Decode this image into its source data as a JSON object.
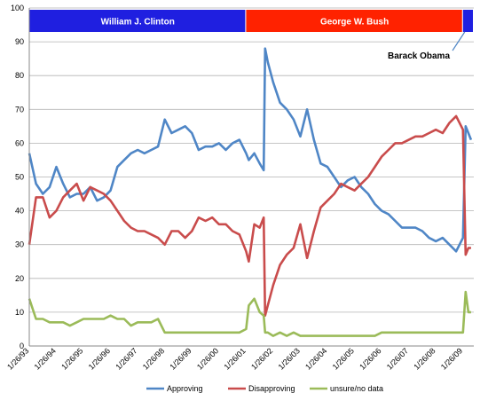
{
  "chart_data": {
    "type": "line",
    "title": "",
    "xlabel": "",
    "ylabel": "",
    "ylim": [
      0,
      100
    ],
    "yticks": [
      0,
      10,
      20,
      30,
      40,
      50,
      60,
      70,
      80,
      90,
      100
    ],
    "xlim": [
      1993,
      2009.4
    ],
    "x_tick_labels": [
      "1/26/93",
      "1/26/94",
      "1/26/95",
      "1/26/96",
      "1/26/97",
      "1/26/98",
      "1/26/99",
      "1/26/00",
      "1/26/01",
      "1/26/02",
      "1/26/03",
      "1/26/04",
      "1/26/05",
      "1/26/06",
      "1/26/07",
      "1/26/08",
      "1/26/09"
    ],
    "grid": "horizontal",
    "legend_position": "bottom",
    "presidency_bands": [
      {
        "name": "William J. Clinton",
        "start": 1993,
        "end": 2001,
        "color": "#1f1fe0"
      },
      {
        "name": "George W. Bush",
        "start": 2001,
        "end": 2009,
        "color": "#ff2200"
      },
      {
        "name": "Barack Obama",
        "start": 2009,
        "end": 2009.4,
        "color": "#1f1fe0"
      }
    ],
    "x": [
      1993.0,
      1993.25,
      1993.5,
      1993.75,
      1994.0,
      1994.25,
      1994.5,
      1994.75,
      1995.0,
      1995.25,
      1995.5,
      1995.75,
      1996.0,
      1996.25,
      1996.5,
      1996.75,
      1997.0,
      1997.25,
      1997.5,
      1997.75,
      1998.0,
      1998.25,
      1998.5,
      1998.75,
      1999.0,
      1999.25,
      1999.5,
      1999.75,
      2000.0,
      2000.25,
      2000.5,
      2000.75,
      2001.0,
      2001.1,
      2001.3,
      2001.5,
      2001.65,
      2001.7,
      2001.8,
      2002.0,
      2002.25,
      2002.5,
      2002.75,
      2003.0,
      2003.25,
      2003.5,
      2003.75,
      2004.0,
      2004.25,
      2004.5,
      2004.75,
      2005.0,
      2005.25,
      2005.5,
      2005.75,
      2006.0,
      2006.25,
      2006.5,
      2006.75,
      2007.0,
      2007.25,
      2007.5,
      2007.75,
      2008.0,
      2008.25,
      2008.5,
      2008.75,
      2009.0,
      2009.1,
      2009.2,
      2009.3
    ],
    "series": [
      {
        "name": "Approving",
        "color": "#4f86c6",
        "values": [
          57,
          48,
          45,
          47,
          53,
          48,
          44,
          45,
          45,
          47,
          43,
          44,
          46,
          53,
          55,
          57,
          58,
          57,
          58,
          59,
          67,
          63,
          64,
          65,
          63,
          58,
          59,
          59,
          60,
          58,
          60,
          61,
          57,
          55,
          57,
          54,
          52,
          88,
          84,
          78,
          72,
          70,
          67,
          62,
          70,
          61,
          54,
          53,
          50,
          47,
          49,
          50,
          47,
          45,
          42,
          40,
          39,
          37,
          35,
          35,
          35,
          34,
          32,
          31,
          32,
          30,
          28,
          32,
          65,
          63,
          61
        ]
      },
      {
        "name": "Disapproving",
        "color": "#c94c4c",
        "values": [
          30,
          44,
          44,
          38,
          40,
          44,
          46,
          48,
          43,
          47,
          46,
          45,
          43,
          40,
          37,
          35,
          34,
          34,
          33,
          32,
          30,
          34,
          34,
          32,
          34,
          38,
          37,
          38,
          36,
          36,
          34,
          33,
          28,
          25,
          36,
          35,
          38,
          9,
          12,
          18,
          24,
          27,
          29,
          36,
          26,
          34,
          41,
          43,
          45,
          48,
          47,
          46,
          48,
          50,
          53,
          56,
          58,
          60,
          60,
          61,
          62,
          62,
          63,
          64,
          63,
          66,
          68,
          64,
          27,
          29,
          29
        ]
      },
      {
        "name": "unsure/no data",
        "color": "#9bbb59",
        "values": [
          14,
          8,
          8,
          7,
          7,
          7,
          6,
          7,
          8,
          8,
          8,
          8,
          9,
          8,
          8,
          6,
          7,
          7,
          7,
          8,
          4,
          4,
          4,
          4,
          4,
          4,
          4,
          4,
          4,
          4,
          4,
          4,
          5,
          12,
          14,
          10,
          9,
          4,
          4,
          3,
          4,
          3,
          4,
          3,
          3,
          3,
          3,
          3,
          3,
          3,
          3,
          3,
          3,
          3,
          3,
          4,
          4,
          4,
          4,
          4,
          4,
          4,
          4,
          4,
          4,
          4,
          4,
          4,
          16,
          10,
          10
        ]
      }
    ]
  }
}
